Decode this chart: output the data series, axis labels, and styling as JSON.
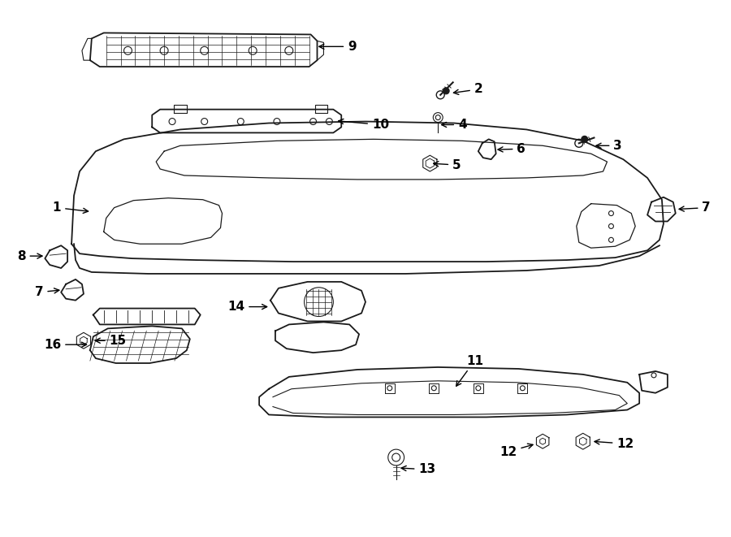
{
  "background": "#ffffff",
  "line_color": "#1a1a1a",
  "label_fontsize": 11,
  "label_fontweight": "bold",
  "figsize": [
    9.0,
    6.61
  ],
  "dpi": 100
}
